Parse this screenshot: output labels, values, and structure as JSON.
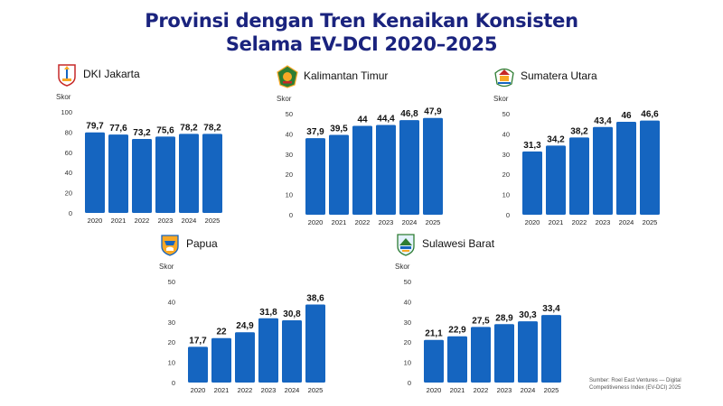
{
  "title_line1": "Provinsi dengan Tren Kenaikan Konsisten",
  "title_line2": "Selama EV-DCI 2020–2025",
  "source_line1": "Sumber: Roel East Ventures — Digital",
  "source_line2": "Competitiveness Index (EV-DCI) 2025",
  "colors": {
    "bar": "#1565c0",
    "title": "#1a237e"
  },
  "chart_data": [
    {
      "type": "bar",
      "title": "DKI Jakarta",
      "emblem": "dki-jakarta-emblem",
      "ylabel": "Skor",
      "categories": [
        "2020",
        "2021",
        "2022",
        "2023",
        "2024",
        "2025"
      ],
      "values": [
        79.7,
        77.6,
        73.2,
        75.6,
        78.2,
        78.2
      ],
      "value_labels": [
        "79,7",
        "77,6",
        "73,2",
        "75,6",
        "78,2",
        "78,2"
      ],
      "ylim": [
        0,
        100
      ],
      "yticks": [
        0,
        20,
        40,
        60,
        80,
        100
      ],
      "grid": false
    },
    {
      "type": "bar",
      "title": "Kalimantan Timur",
      "emblem": "kalimantan-timur-emblem",
      "ylabel": "Skor",
      "categories": [
        "2020",
        "2021",
        "2022",
        "2023",
        "2024",
        "2025"
      ],
      "values": [
        37.9,
        39.5,
        44,
        44.4,
        46.8,
        47.9
      ],
      "value_labels": [
        "37,9",
        "39,5",
        "44",
        "44,4",
        "46,8",
        "47,9"
      ],
      "ylim": [
        0,
        50
      ],
      "yticks": [
        0,
        10,
        20,
        30,
        40,
        50
      ],
      "grid": false
    },
    {
      "type": "bar",
      "title": "Sumatera Utara",
      "emblem": "sumatera-utara-emblem",
      "ylabel": "Skor",
      "categories": [
        "2020",
        "2021",
        "2022",
        "2023",
        "2024",
        "2025"
      ],
      "values": [
        31.3,
        34.2,
        38.2,
        43.4,
        46,
        46.6
      ],
      "value_labels": [
        "31,3",
        "34,2",
        "38,2",
        "43,4",
        "46",
        "46,6"
      ],
      "ylim": [
        0,
        50
      ],
      "yticks": [
        0,
        10,
        20,
        30,
        40,
        50
      ],
      "grid": false
    },
    {
      "type": "bar",
      "title": "Papua",
      "emblem": "papua-emblem",
      "ylabel": "Skor",
      "categories": [
        "2020",
        "2021",
        "2022",
        "2023",
        "2024",
        "2025"
      ],
      "values": [
        17.7,
        22,
        24.9,
        31.8,
        30.8,
        38.6
      ],
      "value_labels": [
        "17,7",
        "22",
        "24,9",
        "31,8",
        "30,8",
        "38,6"
      ],
      "ylim": [
        0,
        50
      ],
      "yticks": [
        0,
        10,
        20,
        30,
        40,
        50
      ],
      "grid": false
    },
    {
      "type": "bar",
      "title": "Sulawesi Barat",
      "emblem": "sulawesi-barat-emblem",
      "ylabel": "Skor",
      "categories": [
        "2020",
        "2021",
        "2022",
        "2023",
        "2024",
        "2025"
      ],
      "values": [
        21.1,
        22.9,
        27.5,
        28.9,
        30.3,
        33.4
      ],
      "value_labels": [
        "21,1",
        "22,9",
        "27,5",
        "28,9",
        "30,3",
        "33,4"
      ],
      "ylim": [
        0,
        50
      ],
      "yticks": [
        0,
        10,
        20,
        30,
        40,
        50
      ],
      "grid": false
    }
  ]
}
